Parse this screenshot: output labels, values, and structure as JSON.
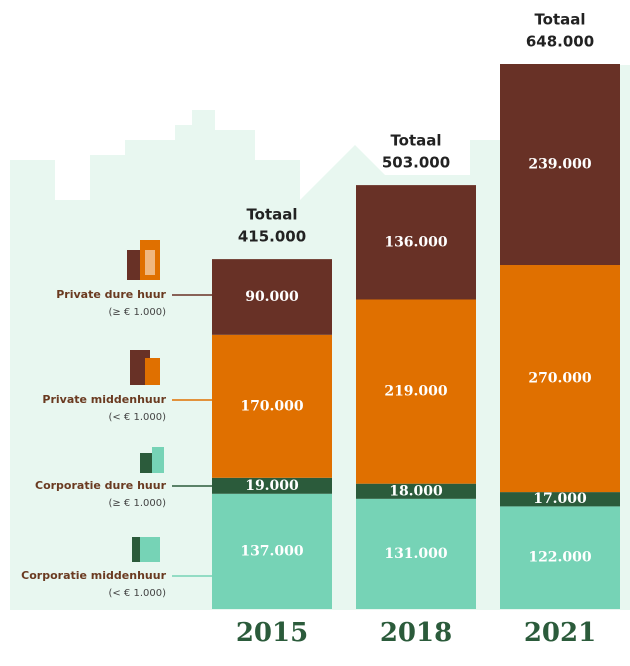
{
  "chart_data": {
    "type": "stacked-bar",
    "categories": [
      "2015",
      "2018",
      "2021"
    ],
    "series": [
      {
        "name": "Corporatie middenhuur",
        "note": "(< € 1.000)",
        "color": "#76d3b6",
        "values": [
          137000,
          131000,
          122000
        ],
        "value_labels": [
          "137.000",
          "131.000",
          "122.000"
        ]
      },
      {
        "name": "Corporatie dure huur",
        "note": "(≥ € 1.000)",
        "color": "#2b5b3b",
        "values": [
          19000,
          18000,
          17000
        ],
        "value_labels": [
          "19.000",
          "18.000",
          "17.000"
        ]
      },
      {
        "name": "Private middenhuur",
        "note": "(< € 1.000)",
        "color": "#e07000",
        "values": [
          170000,
          219000,
          270000
        ],
        "value_labels": [
          "170.000",
          "219.000",
          "270.000"
        ]
      },
      {
        "name": "Private dure huur",
        "note": "(≥ € 1.000)",
        "color": "#683126",
        "values": [
          90000,
          136000,
          239000
        ],
        "value_labels": [
          "90.000",
          "136.000",
          "239.000"
        ]
      }
    ],
    "totals": {
      "label": "Totaal",
      "values": [
        415000,
        503000,
        648000
      ],
      "value_labels": [
        "415.000",
        "503.000",
        "648.000"
      ]
    }
  }
}
